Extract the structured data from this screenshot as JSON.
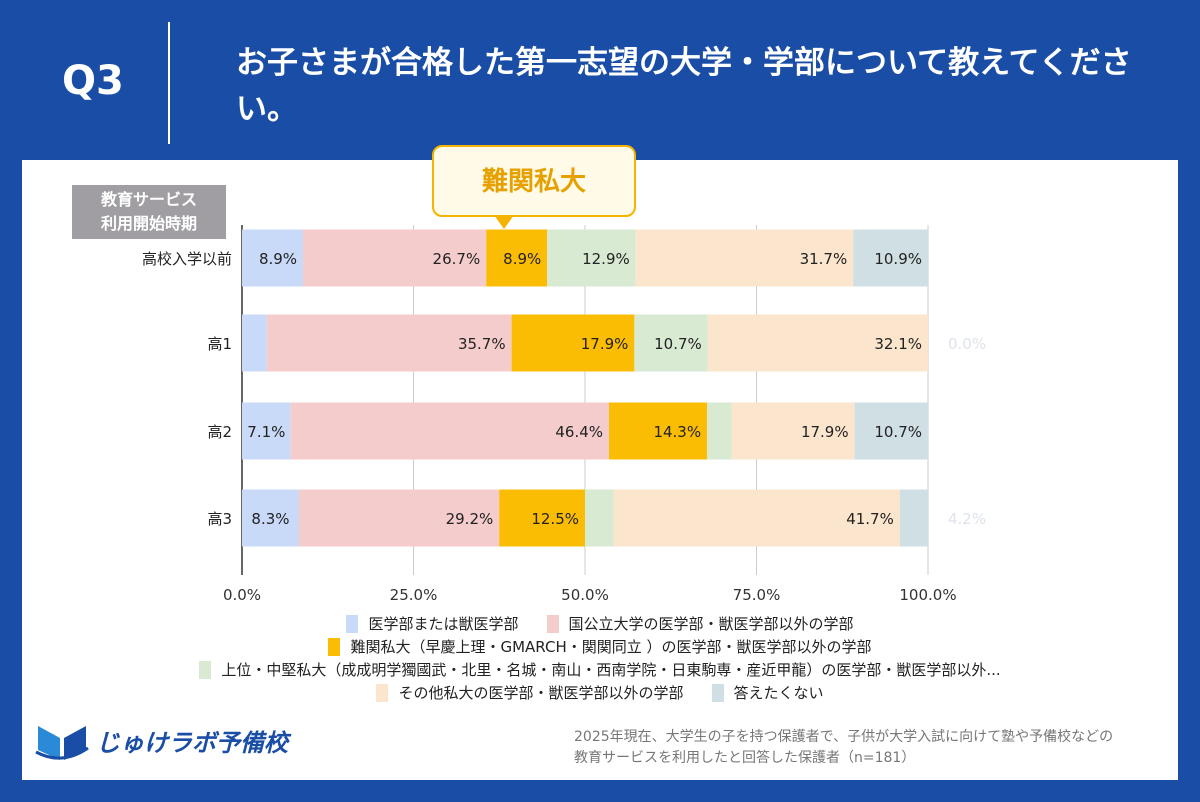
{
  "header": {
    "q": "Q3",
    "title": "お子さまが合格した第一志望の大学・学部について教えてください。"
  },
  "callout": "難関私大",
  "axis_title": [
    "教育サービス",
    "利用開始時期"
  ],
  "colors": {
    "background": "#1a4ea6",
    "highlight": "#fbbc04"
  },
  "chart_data": {
    "type": "bar",
    "orientation": "horizontal",
    "stacked": "percent",
    "categories": [
      "高校入学以前",
      "高1",
      "高2",
      "高3"
    ],
    "xlim": [
      0,
      100
    ],
    "xticks": [
      "0.0%",
      "25.0%",
      "50.0%",
      "75.0%",
      "100.0%"
    ],
    "grid": true,
    "legend_position": "bottom",
    "series": [
      {
        "name": "医学部または獣医学部",
        "color": "#c9daf8",
        "values": [
          8.9,
          3.6,
          7.1,
          8.3
        ],
        "labels": [
          "8.9%",
          "",
          "7.1%",
          "8.3%"
        ]
      },
      {
        "name": "国公立大学の医学部・獣医学部以外の学部",
        "color": "#f4cccc",
        "values": [
          26.7,
          35.7,
          46.4,
          29.2
        ],
        "labels": [
          "26.7%",
          "35.7%",
          "46.4%",
          "29.2%"
        ]
      },
      {
        "name": "難関私大（早慶上理・GMARCH・関関同立 ）の医学部・獣医学部以外の学部",
        "color": "#fbbc04",
        "values": [
          8.9,
          17.9,
          14.3,
          12.5
        ],
        "labels": [
          "8.9%",
          "17.9%",
          "14.3%",
          "12.5%"
        ]
      },
      {
        "name": "上位・中堅私大（成成明学獨國武・北里・名城・南山・西南学院・日東駒専・産近甲龍）の医学部・獣医学部以外...",
        "color": "#d9ead3",
        "values": [
          12.9,
          10.7,
          3.6,
          4.2
        ],
        "labels": [
          "12.9%",
          "10.7%",
          "",
          ""
        ]
      },
      {
        "name": "その他私大の医学部・獣医学部以外の学部",
        "color": "#fce5cd",
        "values": [
          31.7,
          32.1,
          17.9,
          41.7
        ],
        "labels": [
          "31.7%",
          "32.1%",
          "17.9%",
          "41.7%"
        ]
      },
      {
        "name": "答えたくない",
        "color": "#d0dfe3",
        "values": [
          10.9,
          0.0,
          10.7,
          4.2
        ],
        "labels": [
          "10.9%",
          "0.0%",
          "10.7%",
          "4.2%"
        ]
      }
    ]
  },
  "logo": "じゅけラボ予備校",
  "note": [
    "2025年現在、大学生の子を持つ保護者で、子供が大学入試に向けて塾や予備校などの",
    "教育サービスを利用したと回答した保護者（n=181）"
  ]
}
